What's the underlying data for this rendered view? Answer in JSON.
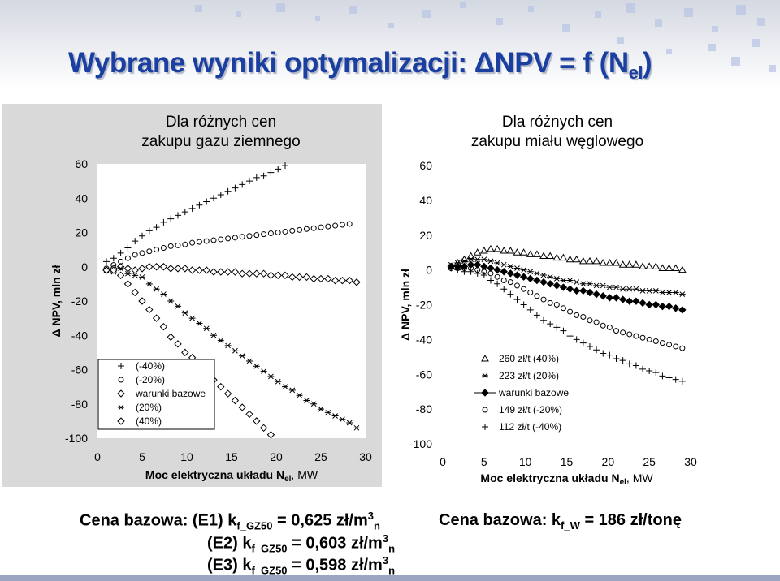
{
  "title": {
    "main": "Wybrane wyniki optymalizacji: ΔNPV = f (N",
    "sub": "el",
    "close": ")"
  },
  "colors": {
    "title": "#1a3fa0",
    "panel_left_bg": "#d9d9d9",
    "plot_bg": "#ffffff",
    "band": "#9aa6c2"
  },
  "chart_data": [
    {
      "type": "scatter",
      "title_line1": "Dla różnych cen",
      "title_line2": "zakupu gazu ziemnego",
      "ylabel": "Δ NPV, mln zł",
      "xlabel": "Moc elektryczna układu N",
      "xlabel_sub": "el",
      "xlabel_unit": ", MW",
      "xlim": [
        0,
        30
      ],
      "ylim": [
        -100,
        60
      ],
      "xticks": [
        0,
        5,
        10,
        15,
        20,
        25,
        30
      ],
      "yticks": [
        60,
        40,
        20,
        0,
        -20,
        -40,
        -60,
        -80,
        -100
      ],
      "x": [
        1.0,
        1.8,
        2.6,
        3.4,
        4.2,
        5.0,
        5.8,
        6.6,
        7.4,
        8.2,
        9.0,
        9.8,
        10.6,
        11.4,
        12.2,
        13.0,
        13.8,
        14.6,
        15.4,
        16.2,
        17.0,
        17.8,
        18.6,
        19.4,
        20.2,
        21.0,
        21.8,
        22.6,
        23.4,
        24.2,
        25.0,
        25.8,
        26.6,
        27.4,
        28.2,
        29.0
      ],
      "legend_position": "left",
      "series": [
        {
          "name": "(-40%)",
          "marker": "plus",
          "values": [
            3,
            5,
            8,
            11,
            15,
            18,
            21,
            23,
            26,
            28,
            30,
            32,
            34,
            36,
            38,
            40,
            42,
            44,
            46,
            48,
            50,
            52,
            53,
            55,
            57,
            59,
            61,
            null,
            null,
            null,
            null,
            null,
            null,
            null,
            null,
            null
          ]
        },
        {
          "name": "(-20%)",
          "marker": "circle",
          "values": [
            -1,
            1,
            3,
            5,
            7,
            8,
            9,
            10,
            11,
            12,
            12.5,
            13,
            14,
            14.5,
            15,
            15.5,
            16,
            16.5,
            17,
            17.5,
            18,
            18.5,
            19,
            19.5,
            20,
            20.5,
            21,
            21.5,
            22,
            22.5,
            23,
            23.5,
            24,
            24.5,
            25,
            null
          ]
        },
        {
          "name": "warunki bazowe",
          "marker": "diamond",
          "values": [
            -2,
            -1,
            0,
            -1,
            -2,
            -1,
            0,
            0,
            0,
            -1,
            -1,
            -1,
            -2,
            -2,
            -2,
            -3,
            -3,
            -3,
            -3,
            -4,
            -4,
            -4,
            -4,
            -5,
            -5,
            -5,
            -6,
            -6,
            -6,
            -7,
            -7,
            -7,
            -8,
            -8,
            -8,
            -9
          ]
        },
        {
          "name": "(20%)",
          "marker": "asterisk",
          "values": [
            -2,
            -3,
            -1,
            -4,
            -5,
            -6,
            -10,
            -13,
            -16,
            -20,
            -23,
            -27,
            -30,
            -33,
            -36,
            -40,
            -43,
            -46,
            -49,
            -52,
            -55,
            -58,
            -61,
            -64,
            -67,
            -70,
            -72,
            -75,
            -78,
            -80,
            -83,
            -85,
            -87,
            -89,
            -91,
            -94
          ]
        },
        {
          "name": "(40%)",
          "marker": "diamond-open",
          "values": [
            -2,
            -2,
            -5,
            -10,
            -15,
            -20,
            -25,
            -30,
            -35,
            -41,
            -45,
            -50,
            -53,
            -58,
            -62,
            -66,
            -70,
            -74,
            -78,
            -82,
            -86,
            -90,
            -94,
            -98,
            -102,
            null,
            null,
            null,
            null,
            null,
            null,
            null,
            null,
            null,
            null,
            null
          ]
        }
      ]
    },
    {
      "type": "scatter",
      "title_line1": "Dla różnych cen",
      "title_line2": "zakupu miału węglowego",
      "ylabel": "Δ NPV, mln zł",
      "xlabel": "Moc elektryczna układu N",
      "xlabel_sub": "el",
      "xlabel_unit": ", MW",
      "xlim": [
        0,
        30
      ],
      "ylim": [
        -100,
        60
      ],
      "xticks": [
        0,
        5,
        10,
        15,
        20,
        25,
        30
      ],
      "yticks": [
        60,
        40,
        20,
        0,
        -20,
        -40,
        -60,
        -80,
        -100
      ],
      "x": [
        1.0,
        1.8,
        2.6,
        3.4,
        4.2,
        5.0,
        5.8,
        6.6,
        7.4,
        8.2,
        9.0,
        9.8,
        10.6,
        11.4,
        12.2,
        13.0,
        13.8,
        14.6,
        15.4,
        16.2,
        17.0,
        17.8,
        18.6,
        19.4,
        20.2,
        21.0,
        21.8,
        22.6,
        23.4,
        24.2,
        25.0,
        25.8,
        26.6,
        27.4,
        28.2,
        29.0
      ],
      "legend_position": "right",
      "series": [
        {
          "name": "260 zł/t (40%)",
          "marker": "triangle",
          "values": [
            2,
            4,
            6,
            8,
            10,
            11,
            12,
            12,
            11,
            11,
            10,
            10,
            9,
            9,
            8,
            8,
            7,
            7,
            6,
            6,
            5,
            5,
            5,
            4,
            4,
            4,
            3,
            3,
            3,
            2,
            2,
            2,
            1,
            1,
            1,
            0
          ]
        },
        {
          "name": "223 zł/t (20%)",
          "marker": "asterisk",
          "values": [
            3,
            4,
            5,
            6,
            6,
            6,
            5,
            4,
            3,
            2,
            1,
            0,
            -1,
            -2,
            -3,
            -4,
            -5,
            -6,
            -6,
            -7,
            -8,
            -8,
            -9,
            -9,
            -10,
            -10,
            -11,
            -11,
            -11,
            -12,
            -12,
            -12,
            -13,
            -13,
            -13,
            -14
          ]
        },
        {
          "name": "warunki bazowe",
          "marker": "diamond-filled",
          "values": [
            2,
            2,
            2,
            3,
            3,
            2,
            1,
            0,
            -1,
            -2,
            -3,
            -4,
            -5,
            -6,
            -7,
            -8,
            -9,
            -10,
            -11,
            -12,
            -12,
            -13,
            -14,
            -15,
            -16,
            -16,
            -17,
            -18,
            -18,
            -19,
            -20,
            -20,
            -21,
            -21,
            -22,
            -23
          ]
        },
        {
          "name": "149 zł/t (-20%)",
          "marker": "circle",
          "values": [
            1,
            1,
            1,
            1,
            0,
            -1,
            -2,
            -4,
            -6,
            -7,
            -9,
            -11,
            -13,
            -15,
            -17,
            -19,
            -20,
            -22,
            -24,
            -26,
            -27,
            -29,
            -30,
            -32,
            -33,
            -35,
            -36,
            -37,
            -38,
            -39,
            -40,
            -41,
            -42,
            -43,
            -44,
            -45
          ]
        },
        {
          "name": "112 zł/t (-40%)",
          "marker": "plus",
          "values": [
            1,
            0,
            -1,
            -1,
            -2,
            -3,
            -6,
            -8,
            -11,
            -14,
            -17,
            -20,
            -23,
            -26,
            -29,
            -31,
            -33,
            -35,
            -38,
            -40,
            -42,
            -44,
            -46,
            -48,
            -49,
            -51,
            -52,
            -54,
            -55,
            -57,
            -58,
            -59,
            -61,
            -62,
            -63,
            -64
          ]
        }
      ]
    }
  ],
  "caption_left": {
    "label": "Cena bazowa:",
    "lines": [
      {
        "tag": "(E1) k",
        "sub": "f_GZ50",
        "eq": " = 0,625 zł/m",
        "sup": "3",
        "unit_sub": "n"
      },
      {
        "tag": "(E2) k",
        "sub": "f_GZ50",
        "eq": " = 0,603 zł/m",
        "sup": "3",
        "unit_sub": "n"
      },
      {
        "tag": "(E3) k",
        "sub": "f_GZ50",
        "eq": " = 0,598 zł/m",
        "sup": "3",
        "unit_sub": "n"
      }
    ]
  },
  "caption_right": {
    "label": "Cena bazowa: k",
    "sub": "f_W",
    "eq": " = 186 zł/tonę"
  }
}
